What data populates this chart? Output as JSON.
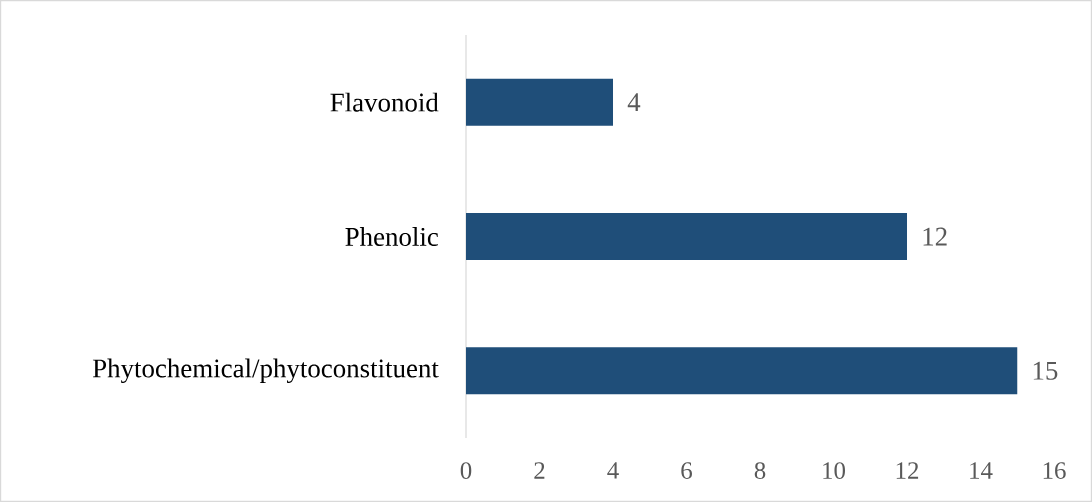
{
  "chart_data": {
    "type": "bar",
    "orientation": "horizontal",
    "categories": [
      "Flavonoid",
      "Phenolic",
      "Phytochemical/phytoconstituent"
    ],
    "values": [
      4,
      12,
      15
    ],
    "color": "#1f4e79",
    "xlim": [
      0,
      16
    ],
    "xticks": [
      0,
      2,
      4,
      6,
      8,
      10,
      12,
      14,
      16
    ],
    "data_labels": true
  }
}
